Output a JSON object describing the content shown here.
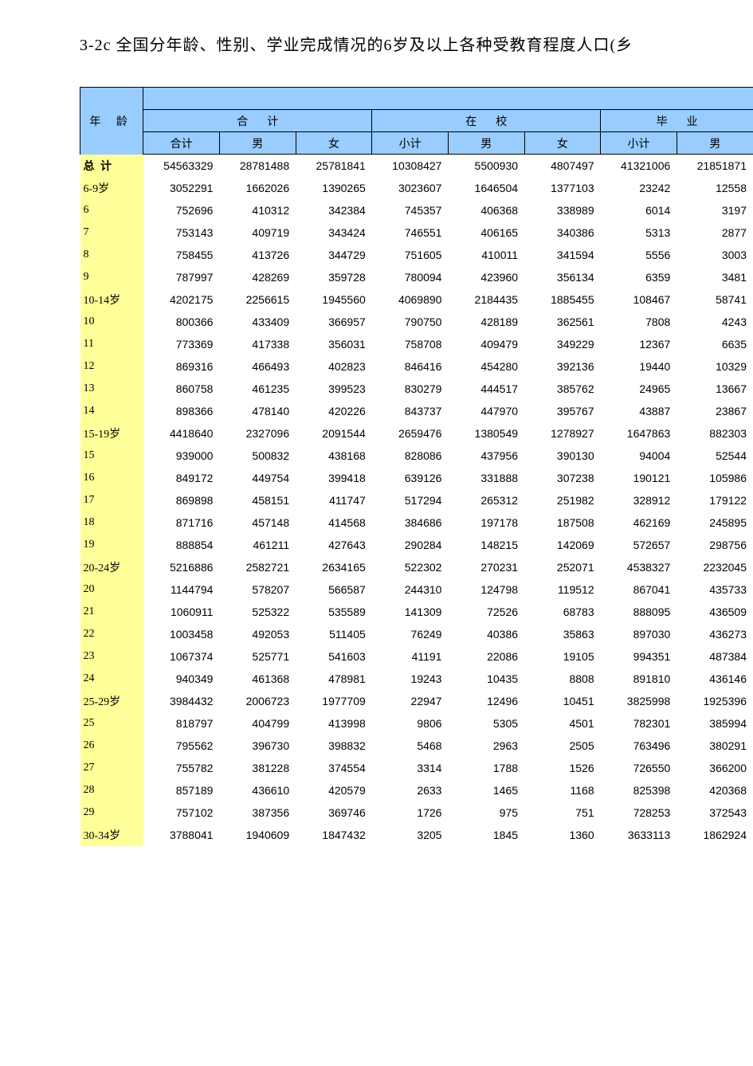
{
  "title": "3-2c  全国分年龄、性别、学业完成情况的6岁及以上各种受教育程度人口(乡",
  "colors": {
    "header_bg": "#99ccff",
    "label_bg": "#ffff99",
    "border": "#000000",
    "text": "#000000",
    "page_bg": "#ffffff"
  },
  "table": {
    "type": "table",
    "age_header": "年 龄",
    "groups": [
      {
        "label": "合计",
        "subs": [
          "合计",
          "男",
          "女"
        ]
      },
      {
        "label": "在校",
        "subs": [
          "小计",
          "男",
          "女"
        ]
      },
      {
        "label": "毕业",
        "subs": [
          "小计",
          "男"
        ]
      }
    ],
    "rows": [
      {
        "label": "总 计",
        "bold": true,
        "values": [
          54563329,
          28781488,
          25781841,
          10308427,
          5500930,
          4807497,
          41321006,
          21851871
        ]
      },
      {
        "label": "6-9岁",
        "values": [
          3052291,
          1662026,
          1390265,
          3023607,
          1646504,
          1377103,
          23242,
          12558
        ]
      },
      {
        "label": "6",
        "values": [
          752696,
          410312,
          342384,
          745357,
          406368,
          338989,
          6014,
          3197
        ]
      },
      {
        "label": "7",
        "values": [
          753143,
          409719,
          343424,
          746551,
          406165,
          340386,
          5313,
          2877
        ]
      },
      {
        "label": "8",
        "values": [
          758455,
          413726,
          344729,
          751605,
          410011,
          341594,
          5556,
          3003
        ]
      },
      {
        "label": "9",
        "values": [
          787997,
          428269,
          359728,
          780094,
          423960,
          356134,
          6359,
          3481
        ]
      },
      {
        "label": "10-14岁",
        "values": [
          4202175,
          2256615,
          1945560,
          4069890,
          2184435,
          1885455,
          108467,
          58741
        ]
      },
      {
        "label": "10",
        "values": [
          800366,
          433409,
          366957,
          790750,
          428189,
          362561,
          7808,
          4243
        ]
      },
      {
        "label": "11",
        "values": [
          773369,
          417338,
          356031,
          758708,
          409479,
          349229,
          12367,
          6635
        ]
      },
      {
        "label": "12",
        "values": [
          869316,
          466493,
          402823,
          846416,
          454280,
          392136,
          19440,
          10329
        ]
      },
      {
        "label": "13",
        "values": [
          860758,
          461235,
          399523,
          830279,
          444517,
          385762,
          24965,
          13667
        ]
      },
      {
        "label": "14",
        "values": [
          898366,
          478140,
          420226,
          843737,
          447970,
          395767,
          43887,
          23867
        ]
      },
      {
        "label": "15-19岁",
        "values": [
          4418640,
          2327096,
          2091544,
          2659476,
          1380549,
          1278927,
          1647863,
          882303
        ]
      },
      {
        "label": "15",
        "values": [
          939000,
          500832,
          438168,
          828086,
          437956,
          390130,
          94004,
          52544
        ]
      },
      {
        "label": "16",
        "values": [
          849172,
          449754,
          399418,
          639126,
          331888,
          307238,
          190121,
          105986
        ]
      },
      {
        "label": "17",
        "values": [
          869898,
          458151,
          411747,
          517294,
          265312,
          251982,
          328912,
          179122
        ]
      },
      {
        "label": "18",
        "values": [
          871716,
          457148,
          414568,
          384686,
          197178,
          187508,
          462169,
          245895
        ]
      },
      {
        "label": "19",
        "values": [
          888854,
          461211,
          427643,
          290284,
          148215,
          142069,
          572657,
          298756
        ]
      },
      {
        "label": "20-24岁",
        "values": [
          5216886,
          2582721,
          2634165,
          522302,
          270231,
          252071,
          4538327,
          2232045
        ]
      },
      {
        "label": "20",
        "values": [
          1144794,
          578207,
          566587,
          244310,
          124798,
          119512,
          867041,
          435733
        ]
      },
      {
        "label": "21",
        "values": [
          1060911,
          525322,
          535589,
          141309,
          72526,
          68783,
          888095,
          436509
        ]
      },
      {
        "label": "22",
        "values": [
          1003458,
          492053,
          511405,
          76249,
          40386,
          35863,
          897030,
          436273
        ]
      },
      {
        "label": "23",
        "values": [
          1067374,
          525771,
          541603,
          41191,
          22086,
          19105,
          994351,
          487384
        ]
      },
      {
        "label": "24",
        "values": [
          940349,
          461368,
          478981,
          19243,
          10435,
          8808,
          891810,
          436146
        ]
      },
      {
        "label": "25-29岁",
        "values": [
          3984432,
          2006723,
          1977709,
          22947,
          12496,
          10451,
          3825998,
          1925396
        ]
      },
      {
        "label": "25",
        "values": [
          818797,
          404799,
          413998,
          9806,
          5305,
          4501,
          782301,
          385994
        ]
      },
      {
        "label": "26",
        "values": [
          795562,
          396730,
          398832,
          5468,
          2963,
          2505,
          763496,
          380291
        ]
      },
      {
        "label": "27",
        "values": [
          755782,
          381228,
          374554,
          3314,
          1788,
          1526,
          726550,
          366200
        ]
      },
      {
        "label": "28",
        "values": [
          857189,
          436610,
          420579,
          2633,
          1465,
          1168,
          825398,
          420368
        ]
      },
      {
        "label": "29",
        "values": [
          757102,
          387356,
          369746,
          1726,
          975,
          751,
          728253,
          372543
        ]
      },
      {
        "label": "30-34岁",
        "values": [
          3788041,
          1940609,
          1847432,
          3205,
          1845,
          1360,
          3633113,
          1862924
        ]
      }
    ]
  }
}
